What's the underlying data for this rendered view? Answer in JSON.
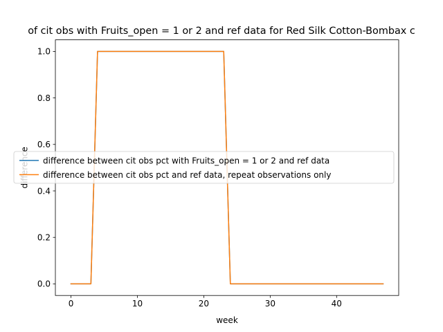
{
  "chart_data": {
    "type": "line",
    "title": "of cit obs with Fruits_open = 1 or 2 and ref data for Red Silk Cotton-Bombax c",
    "xlabel": "week",
    "ylabel": "difference",
    "xlim": [
      -2.35,
      49.35
    ],
    "ylim": [
      -0.05,
      1.05
    ],
    "xticks": [
      0,
      10,
      20,
      30,
      40
    ],
    "yticks": [
      0.0,
      0.2,
      0.4,
      0.6,
      0.8,
      1.0
    ],
    "xtick_labels": [
      "0",
      "10",
      "20",
      "30",
      "40"
    ],
    "ytick_labels": [
      "0.0",
      "0.2",
      "0.4",
      "0.6",
      "0.8",
      "1.0"
    ],
    "grid": false,
    "legend_position": "center-right",
    "x": [
      0,
      1,
      2,
      3,
      4,
      5,
      6,
      7,
      8,
      9,
      10,
      11,
      12,
      13,
      14,
      15,
      16,
      17,
      18,
      19,
      20,
      21,
      22,
      23,
      24,
      25,
      26,
      27,
      28,
      29,
      30,
      31,
      32,
      33,
      34,
      35,
      36,
      37,
      38,
      39,
      40,
      41,
      42,
      43,
      44,
      45,
      46,
      47
    ],
    "series": [
      {
        "name": "difference between cit obs pct with Fruits_open = 1 or 2 and ref data",
        "color": "#1f77b4",
        "values": [
          0,
          0,
          0,
          0,
          1,
          1,
          1,
          1,
          1,
          1,
          1,
          1,
          1,
          1,
          1,
          1,
          1,
          1,
          1,
          1,
          1,
          1,
          1,
          1,
          0,
          0,
          0,
          0,
          0,
          0,
          0,
          0,
          0,
          0,
          0,
          0,
          0,
          0,
          0,
          0,
          0,
          0,
          0,
          0,
          0,
          0,
          0,
          0
        ]
      },
      {
        "name": "difference between cit obs pct and ref data, repeat observations only",
        "color": "#ff7f0e",
        "values": [
          0,
          0,
          0,
          0,
          1,
          1,
          1,
          1,
          1,
          1,
          1,
          1,
          1,
          1,
          1,
          1,
          1,
          1,
          1,
          1,
          1,
          1,
          1,
          1,
          0,
          0,
          0,
          0,
          0,
          0,
          0,
          0,
          0,
          0,
          0,
          0,
          0,
          0,
          0,
          0,
          0,
          0,
          0,
          0,
          0,
          0,
          0,
          0
        ]
      }
    ]
  }
}
